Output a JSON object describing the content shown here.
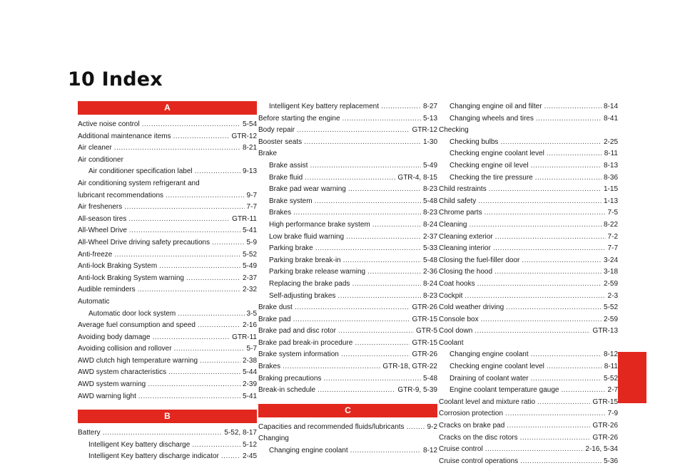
{
  "title": "10 Index",
  "colors": {
    "accent": "#e2281e"
  },
  "columns": [
    [
      {
        "type": "banner",
        "text": "A"
      },
      {
        "type": "entry",
        "text": "Active noise control",
        "page": "5-54"
      },
      {
        "type": "entry",
        "text": "Additional maintenance items",
        "page": "GTR-12"
      },
      {
        "type": "entry",
        "text": "Air cleaner",
        "page": "8-21"
      },
      {
        "type": "head",
        "text": "Air conditioner"
      },
      {
        "type": "entry",
        "indent": 1,
        "text": "Air conditioner specification label",
        "page": "9-13"
      },
      {
        "type": "head",
        "text": "Air conditioning system refrigerant and"
      },
      {
        "type": "entry",
        "text": "lubricant recommendations",
        "page": "9-7"
      },
      {
        "type": "entry",
        "text": "Air fresheners",
        "page": "7-7"
      },
      {
        "type": "entry",
        "text": "All-season tires",
        "page": "GTR-11"
      },
      {
        "type": "entry",
        "text": "All-Wheel Drive",
        "page": "5-41"
      },
      {
        "type": "entry",
        "text": "All-Wheel Drive driving safety precautions",
        "page": "5-9"
      },
      {
        "type": "entry",
        "text": "Anti-freeze",
        "page": "5-52"
      },
      {
        "type": "entry",
        "text": "Anti-lock Braking System",
        "page": "5-49"
      },
      {
        "type": "entry",
        "text": "Anti-lock Braking System warning",
        "page": "2-37"
      },
      {
        "type": "entry",
        "text": "Audible reminders",
        "page": "2-32"
      },
      {
        "type": "head",
        "text": "Automatic"
      },
      {
        "type": "entry",
        "indent": 1,
        "text": "Automatic door lock system",
        "page": "3-5"
      },
      {
        "type": "entry",
        "text": "Average fuel consumption and speed",
        "page": "2-16"
      },
      {
        "type": "entry",
        "text": "Avoiding body damage",
        "page": "GTR-11"
      },
      {
        "type": "entry",
        "text": "Avoiding collision and rollover",
        "page": "5-7"
      },
      {
        "type": "entry",
        "text": "AWD clutch high temperature warning",
        "page": "2-38"
      },
      {
        "type": "entry",
        "text": "AWD system characteristics",
        "page": "5-44"
      },
      {
        "type": "entry",
        "text": "AWD system warning",
        "page": "2-39"
      },
      {
        "type": "entry",
        "text": "AWD warning light",
        "page": "5-41"
      },
      {
        "type": "gap"
      },
      {
        "type": "banner",
        "text": "B"
      },
      {
        "type": "entry",
        "text": "Battery",
        "page": "5-52, 8-17"
      },
      {
        "type": "entry",
        "indent": 1,
        "text": "Intelligent Key battery discharge",
        "page": "5-12"
      },
      {
        "type": "entry",
        "indent": 1,
        "text": "Intelligent Key battery discharge indicator",
        "page": "2-45"
      }
    ],
    [
      {
        "type": "entry",
        "indent": 1,
        "text": "Intelligent Key battery replacement",
        "page": "8-27"
      },
      {
        "type": "entry",
        "text": "Before starting the engine",
        "page": "5-13"
      },
      {
        "type": "entry",
        "text": "Body repair",
        "page": "GTR-12"
      },
      {
        "type": "entry",
        "text": "Booster seats",
        "page": "1-30"
      },
      {
        "type": "head",
        "text": "Brake"
      },
      {
        "type": "entry",
        "indent": 1,
        "text": "Brake assist",
        "page": "5-49"
      },
      {
        "type": "entry",
        "indent": 1,
        "text": "Brake fluid",
        "page": "GTR-4, 8-15"
      },
      {
        "type": "entry",
        "indent": 1,
        "text": "Brake pad wear warning",
        "page": "8-23"
      },
      {
        "type": "entry",
        "indent": 1,
        "text": "Brake system",
        "page": "5-48"
      },
      {
        "type": "entry",
        "indent": 1,
        "text": "Brakes",
        "page": "8-23"
      },
      {
        "type": "entry",
        "indent": 1,
        "text": "High performance brake system",
        "page": "8-24"
      },
      {
        "type": "entry",
        "indent": 1,
        "text": "Low brake fluid warning",
        "page": "2-37"
      },
      {
        "type": "entry",
        "indent": 1,
        "text": "Parking brake",
        "page": "5-33"
      },
      {
        "type": "entry",
        "indent": 1,
        "text": "Parking brake break-in",
        "page": "5-48"
      },
      {
        "type": "entry",
        "indent": 1,
        "text": "Parking brake release warning",
        "page": "2-36"
      },
      {
        "type": "entry",
        "indent": 1,
        "text": "Replacing the brake pads",
        "page": "8-24"
      },
      {
        "type": "entry",
        "indent": 1,
        "text": "Self-adjusting brakes",
        "page": "8-23"
      },
      {
        "type": "entry",
        "text": "Brake dust",
        "page": "GTR-26"
      },
      {
        "type": "entry",
        "text": "Brake pad",
        "page": "GTR-15"
      },
      {
        "type": "entry",
        "text": "Brake pad and disc rotor",
        "page": "GTR-5"
      },
      {
        "type": "entry",
        "text": "Brake pad break-in procedure",
        "page": "GTR-15"
      },
      {
        "type": "entry",
        "text": "Brake system information",
        "page": "GTR-26"
      },
      {
        "type": "entry",
        "text": "Brakes",
        "page": "GTR-18, GTR-22"
      },
      {
        "type": "entry",
        "text": "Braking precautions",
        "page": "5-48"
      },
      {
        "type": "entry",
        "text": "Break-in schedule",
        "page": "GTR-9, 5-39"
      },
      {
        "type": "gap"
      },
      {
        "type": "banner",
        "text": "C"
      },
      {
        "type": "entry",
        "text": "Capacities and recommended fluids/lubricants",
        "page": "9-2"
      },
      {
        "type": "head",
        "text": "Changing"
      },
      {
        "type": "entry",
        "indent": 1,
        "text": "Changing engine coolant",
        "page": "8-12"
      }
    ],
    [
      {
        "type": "entry",
        "indent": 1,
        "text": "Changing engine oil and filter",
        "page": "8-14"
      },
      {
        "type": "entry",
        "indent": 1,
        "text": "Changing wheels and tires",
        "page": "8-41"
      },
      {
        "type": "head",
        "text": "Checking"
      },
      {
        "type": "entry",
        "indent": 1,
        "text": "Checking bulbs",
        "page": "2-25"
      },
      {
        "type": "entry",
        "indent": 1,
        "text": "Checking engine coolant level",
        "page": "8-11"
      },
      {
        "type": "entry",
        "indent": 1,
        "text": "Checking engine oil level",
        "page": "8-13"
      },
      {
        "type": "entry",
        "indent": 1,
        "text": "Checking the tire pressure",
        "page": "8-36"
      },
      {
        "type": "entry",
        "text": "Child restraints",
        "page": "1-15"
      },
      {
        "type": "entry",
        "text": "Child safety",
        "page": "1-13"
      },
      {
        "type": "entry",
        "text": "Chrome parts",
        "page": "7-5"
      },
      {
        "type": "entry",
        "text": "Cleaning",
        "page": "8-22"
      },
      {
        "type": "entry",
        "text": "Cleaning exterior",
        "page": "7-2"
      },
      {
        "type": "entry",
        "text": "Cleaning interior",
        "page": "7-7"
      },
      {
        "type": "entry",
        "text": "Closing the fuel-filler door",
        "page": "3-24"
      },
      {
        "type": "entry",
        "text": "Closing the hood",
        "page": "3-18"
      },
      {
        "type": "entry",
        "text": "Coat hooks",
        "page": "2-59"
      },
      {
        "type": "entry",
        "text": "Cockpit",
        "page": "2-3"
      },
      {
        "type": "entry",
        "text": "Cold weather driving",
        "page": "5-52"
      },
      {
        "type": "entry",
        "text": "Console box",
        "page": "2-59"
      },
      {
        "type": "entry",
        "text": "Cool down",
        "page": "GTR-13"
      },
      {
        "type": "head",
        "text": "Coolant"
      },
      {
        "type": "entry",
        "indent": 1,
        "text": "Changing engine coolant",
        "page": "8-12"
      },
      {
        "type": "entry",
        "indent": 1,
        "text": "Checking engine coolant level",
        "page": "8-11"
      },
      {
        "type": "entry",
        "indent": 1,
        "text": "Draining of coolant water",
        "page": "5-52"
      },
      {
        "type": "entry",
        "indent": 1,
        "text": "Engine coolant temperature gauge",
        "page": "2-7"
      },
      {
        "type": "entry",
        "text": "Coolant level and mixture ratio",
        "page": "GTR-15"
      },
      {
        "type": "entry",
        "text": "Corrosion protection",
        "page": "7-9"
      },
      {
        "type": "entry",
        "text": "Cracks on brake pad",
        "page": "GTR-26"
      },
      {
        "type": "entry",
        "text": "Cracks on the disc rotors",
        "page": "GTR-26"
      },
      {
        "type": "entry",
        "text": "Cruise control",
        "page": "2-16, 5-34"
      },
      {
        "type": "entry",
        "text": "Cruise control operations",
        "page": "5-36"
      }
    ]
  ]
}
